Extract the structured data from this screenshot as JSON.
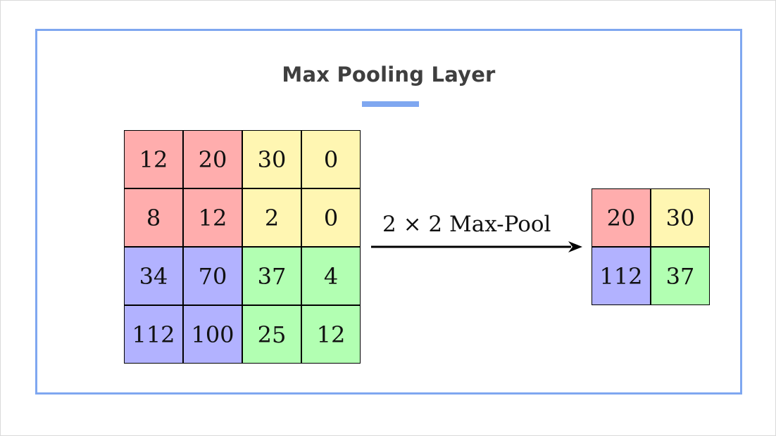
{
  "title": "Max Pooling Layer",
  "colors": {
    "accent": "#7fa7f0",
    "red": "#ffadad",
    "yellow": "#fff6b2",
    "blue": "#b2b2ff",
    "green": "#b2ffb2"
  },
  "operation_label": "2 × 2 Max-Pool",
  "input_grid": [
    [
      {
        "v": "12",
        "c": "red"
      },
      {
        "v": "20",
        "c": "red"
      },
      {
        "v": "30",
        "c": "yellow"
      },
      {
        "v": "0",
        "c": "yellow"
      }
    ],
    [
      {
        "v": "8",
        "c": "red"
      },
      {
        "v": "12",
        "c": "red"
      },
      {
        "v": "2",
        "c": "yellow"
      },
      {
        "v": "0",
        "c": "yellow"
      }
    ],
    [
      {
        "v": "34",
        "c": "blue"
      },
      {
        "v": "70",
        "c": "blue"
      },
      {
        "v": "37",
        "c": "green"
      },
      {
        "v": "4",
        "c": "green"
      }
    ],
    [
      {
        "v": "112",
        "c": "blue"
      },
      {
        "v": "100",
        "c": "blue"
      },
      {
        "v": "25",
        "c": "green"
      },
      {
        "v": "12",
        "c": "green"
      }
    ]
  ],
  "output_grid": [
    [
      {
        "v": "20",
        "c": "red"
      },
      {
        "v": "30",
        "c": "yellow"
      }
    ],
    [
      {
        "v": "112",
        "c": "blue"
      },
      {
        "v": "37",
        "c": "green"
      }
    ]
  ]
}
